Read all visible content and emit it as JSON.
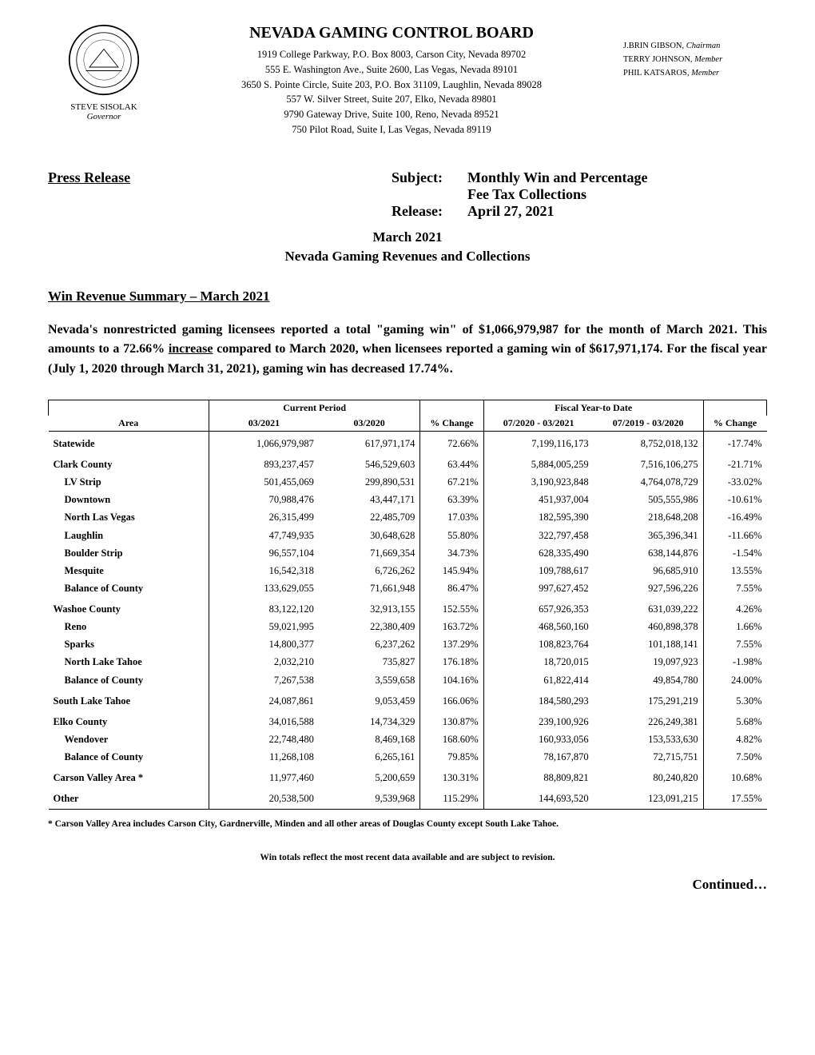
{
  "header": {
    "governor_name": "STEVE SISOLAK",
    "governor_title": "Governor",
    "board_title": "NEVADA GAMING CONTROL BOARD",
    "addresses": [
      "1919 College Parkway, P.O. Box 8003, Carson City, Nevada 89702",
      "555 E. Washington Ave., Suite 2600, Las Vegas, Nevada 89101",
      "3650 S. Pointe Circle, Suite 203, P.O. Box 31109, Laughlin, Nevada 89028",
      "557 W. Silver Street, Suite 207, Elko, Nevada 89801",
      "9790 Gateway Drive, Suite 100, Reno, Nevada 89521",
      "750 Pilot Road, Suite I, Las Vegas, Nevada 89119"
    ],
    "members": [
      {
        "name": "J.BRIN GIBSON",
        "title": "Chairman"
      },
      {
        "name": "TERRY JOHNSON",
        "title": "Member"
      },
      {
        "name": "PHIL KATSAROS",
        "title": "Member"
      }
    ]
  },
  "titles": {
    "press_release": "Press Release",
    "subject_label": "Subject:",
    "subject_line1": "Monthly Win and Percentage",
    "subject_line2": "Fee Tax Collections",
    "release_label": "Release:",
    "release_date": "April 27, 2021",
    "month_title": "March 2021",
    "subtitle": "Nevada Gaming Revenues and Collections",
    "section_heading": "Win Revenue Summary – March 2021"
  },
  "summary": {
    "p1a": "Nevada's nonrestricted gaming licensees reported a total \"gaming win\" of $1,066,979,987 for the month of March 2021.  This amounts to a 72.66% ",
    "p1_underline": "increase",
    "p1b": " compared to March 2020, when licensees reported a gaming win of $617,971,174.  For the fiscal year (July 1, 2020 through March 31, 2021), gaming win has decreased 17.74%."
  },
  "table": {
    "headers": {
      "current_period": "Current Period",
      "fiscal_ytd": "Fiscal Year-to Date",
      "area": "Area",
      "cur1": "03/2021",
      "cur2": "03/2020",
      "pct_change": "% Change",
      "fy1": "07/2020 - 03/2021",
      "fy2": "07/2019 - 03/2020"
    },
    "rows": [
      {
        "area": "Statewide",
        "cur1": "1,066,979,987",
        "cur2": "617,971,174",
        "pct1": "72.66%",
        "fy1": "7,199,116,173",
        "fy2": "8,752,018,132",
        "pct2": "-17.74%",
        "sub": false,
        "group": true
      },
      {
        "area": "Clark County",
        "cur1": "893,237,457",
        "cur2": "546,529,603",
        "pct1": "63.44%",
        "fy1": "5,884,005,259",
        "fy2": "7,516,106,275",
        "pct2": "-21.71%",
        "sub": false,
        "group": true
      },
      {
        "area": "LV Strip",
        "cur1": "501,455,069",
        "cur2": "299,890,531",
        "pct1": "67.21%",
        "fy1": "3,190,923,848",
        "fy2": "4,764,078,729",
        "pct2": "-33.02%",
        "sub": true
      },
      {
        "area": "Downtown",
        "cur1": "70,988,476",
        "cur2": "43,447,171",
        "pct1": "63.39%",
        "fy1": "451,937,004",
        "fy2": "505,555,986",
        "pct2": "-10.61%",
        "sub": true
      },
      {
        "area": "North Las Vegas",
        "cur1": "26,315,499",
        "cur2": "22,485,709",
        "pct1": "17.03%",
        "fy1": "182,595,390",
        "fy2": "218,648,208",
        "pct2": "-16.49%",
        "sub": true
      },
      {
        "area": "Laughlin",
        "cur1": "47,749,935",
        "cur2": "30,648,628",
        "pct1": "55.80%",
        "fy1": "322,797,458",
        "fy2": "365,396,341",
        "pct2": "-11.66%",
        "sub": true
      },
      {
        "area": "Boulder Strip",
        "cur1": "96,557,104",
        "cur2": "71,669,354",
        "pct1": "34.73%",
        "fy1": "628,335,490",
        "fy2": "638,144,876",
        "pct2": "-1.54%",
        "sub": true
      },
      {
        "area": "Mesquite",
        "cur1": "16,542,318",
        "cur2": "6,726,262",
        "pct1": "145.94%",
        "fy1": "109,788,617",
        "fy2": "96,685,910",
        "pct2": "13.55%",
        "sub": true
      },
      {
        "area": "Balance of County",
        "cur1": "133,629,055",
        "cur2": "71,661,948",
        "pct1": "86.47%",
        "fy1": "997,627,452",
        "fy2": "927,596,226",
        "pct2": "7.55%",
        "sub": true
      },
      {
        "area": "Washoe County",
        "cur1": "83,122,120",
        "cur2": "32,913,155",
        "pct1": "152.55%",
        "fy1": "657,926,353",
        "fy2": "631,039,222",
        "pct2": "4.26%",
        "sub": false,
        "group": true
      },
      {
        "area": "Reno",
        "cur1": "59,021,995",
        "cur2": "22,380,409",
        "pct1": "163.72%",
        "fy1": "468,560,160",
        "fy2": "460,898,378",
        "pct2": "1.66%",
        "sub": true
      },
      {
        "area": "Sparks",
        "cur1": "14,800,377",
        "cur2": "6,237,262",
        "pct1": "137.29%",
        "fy1": "108,823,764",
        "fy2": "101,188,141",
        "pct2": "7.55%",
        "sub": true
      },
      {
        "area": "North Lake Tahoe",
        "cur1": "2,032,210",
        "cur2": "735,827",
        "pct1": "176.18%",
        "fy1": "18,720,015",
        "fy2": "19,097,923",
        "pct2": "-1.98%",
        "sub": true
      },
      {
        "area": "Balance of County",
        "cur1": "7,267,538",
        "cur2": "3,559,658",
        "pct1": "104.16%",
        "fy1": "61,822,414",
        "fy2": "49,854,780",
        "pct2": "24.00%",
        "sub": true
      },
      {
        "area": "South Lake Tahoe",
        "cur1": "24,087,861",
        "cur2": "9,053,459",
        "pct1": "166.06%",
        "fy1": "184,580,293",
        "fy2": "175,291,219",
        "pct2": "5.30%",
        "sub": false,
        "group": true
      },
      {
        "area": "Elko County",
        "cur1": "34,016,588",
        "cur2": "14,734,329",
        "pct1": "130.87%",
        "fy1": "239,100,926",
        "fy2": "226,249,381",
        "pct2": "5.68%",
        "sub": false,
        "group": true
      },
      {
        "area": "Wendover",
        "cur1": "22,748,480",
        "cur2": "8,469,168",
        "pct1": "168.60%",
        "fy1": "160,933,056",
        "fy2": "153,533,630",
        "pct2": "4.82%",
        "sub": true
      },
      {
        "area": "Balance of County",
        "cur1": "11,268,108",
        "cur2": "6,265,161",
        "pct1": "79.85%",
        "fy1": "78,167,870",
        "fy2": "72,715,751",
        "pct2": "7.50%",
        "sub": true
      },
      {
        "area": "Carson Valley Area *",
        "cur1": "11,977,460",
        "cur2": "5,200,659",
        "pct1": "130.31%",
        "fy1": "88,809,821",
        "fy2": "80,240,820",
        "pct2": "10.68%",
        "sub": false,
        "group": true
      },
      {
        "area": "Other",
        "cur1": "20,538,500",
        "cur2": "9,539,968",
        "pct1": "115.29%",
        "fy1": "144,693,520",
        "fy2": "123,091,215",
        "pct2": "17.55%",
        "sub": false,
        "group": true,
        "last": true
      }
    ]
  },
  "footer": {
    "footnote": "* Carson Valley Area includes Carson City, Gardnerville, Minden and all other areas of Douglas County except South Lake Tahoe.",
    "revision_note": "Win totals reflect the most recent data available and are subject to revision.",
    "continued": "Continued…"
  }
}
